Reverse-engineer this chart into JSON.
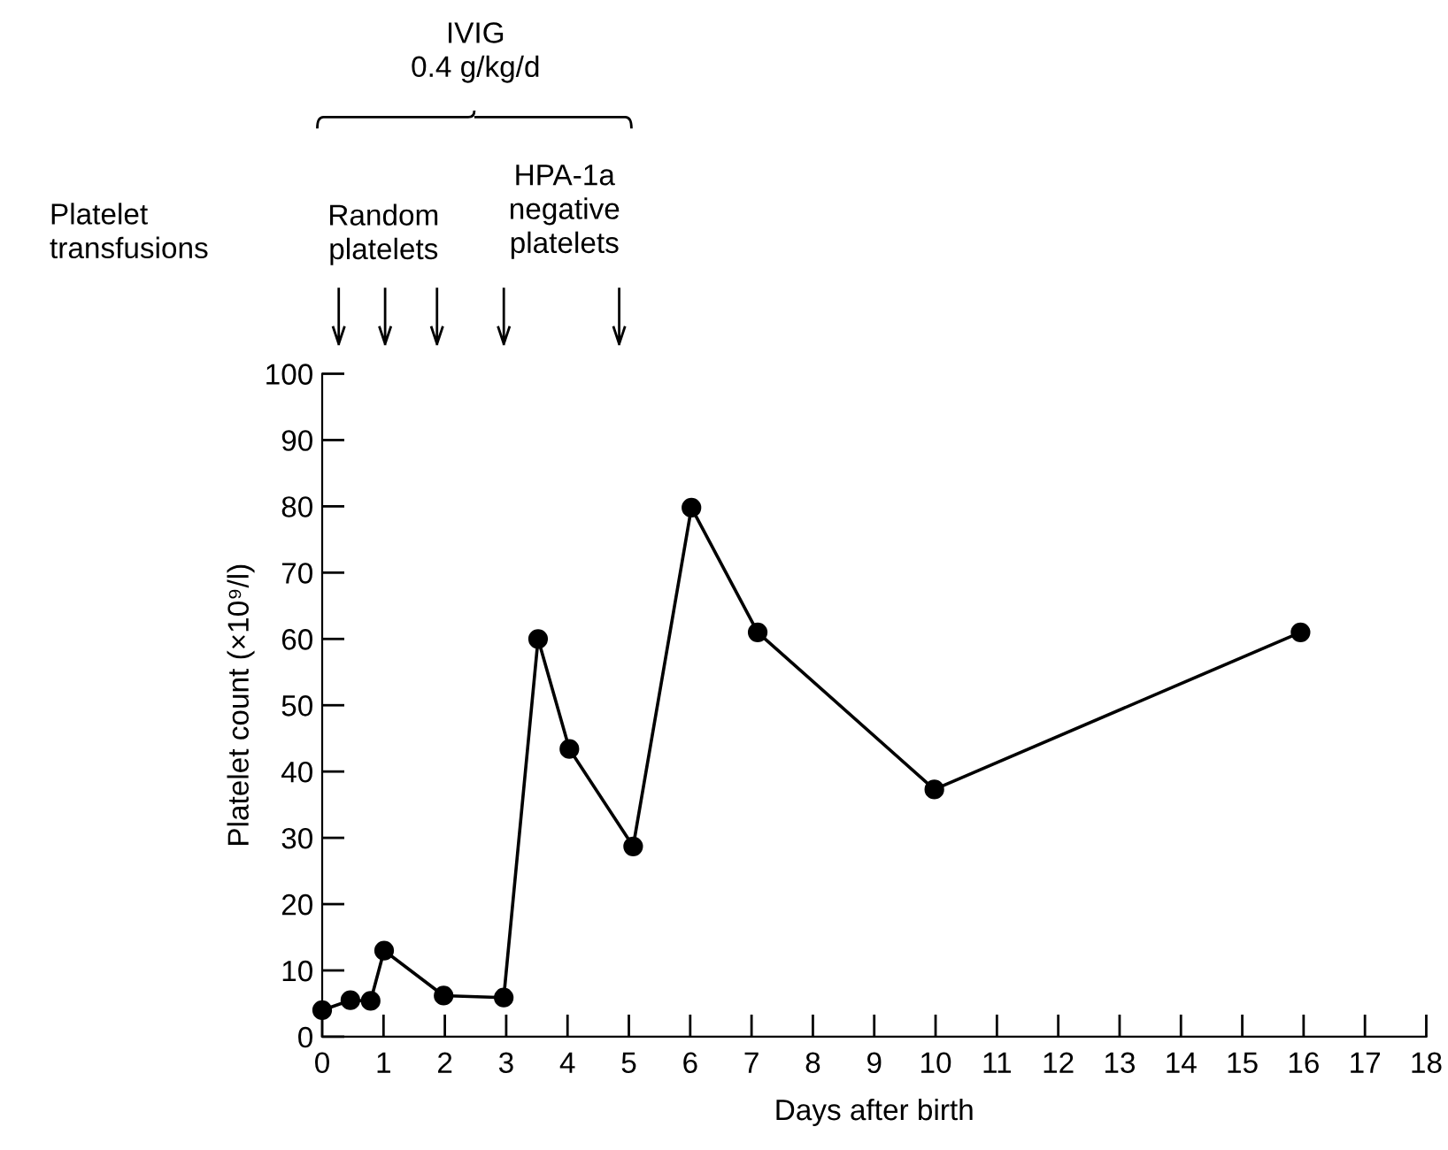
{
  "chart_data": {
    "type": "line",
    "xlabel": "Days after birth",
    "ylabel": "Platelet count (×10⁹/l)",
    "x": [
      0,
      0.46,
      0.79,
      1.01,
      1.98,
      2.96,
      3.52,
      4.03,
      5.07,
      6.02,
      7.1,
      9.98,
      15.95
    ],
    "series": [
      {
        "color": "#000000",
        "values": [
          4.0,
          5.5,
          5.4,
          13.0,
          6.2,
          5.9,
          60.0,
          43.4,
          28.7,
          79.8,
          61.0,
          37.3,
          61.0
        ]
      }
    ],
    "xlim": [
      0,
      18
    ],
    "xticks": [
      0,
      1,
      2,
      3,
      4,
      5,
      6,
      7,
      8,
      9,
      10,
      11,
      12,
      13,
      14,
      15,
      16,
      17,
      18
    ],
    "ylim": [
      0,
      100
    ],
    "yticks": [
      0,
      10,
      20,
      30,
      40,
      50,
      60,
      70,
      80,
      90,
      100
    ],
    "marker": "circle",
    "line_style": "solid",
    "grid": false,
    "legend": false,
    "annotations": [
      "Platelet\ntransfusions",
      "Random\nplatelets",
      "HPA-1a\nnegative\nplatelets",
      "IVIG\n0.4 g/kg/d"
    ]
  }
}
